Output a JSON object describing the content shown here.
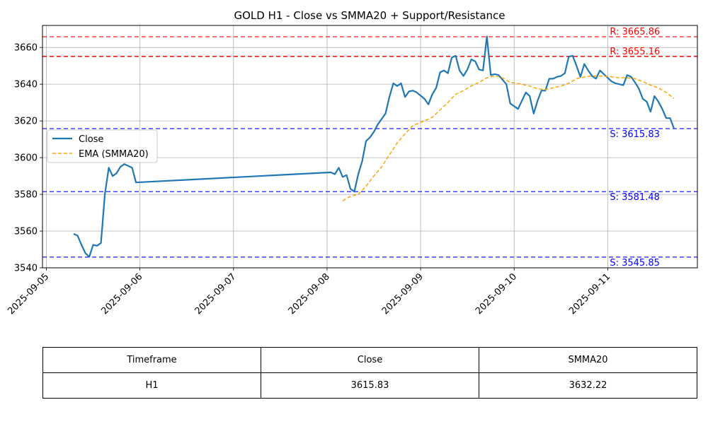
{
  "chart_data": {
    "type": "line",
    "title": "GOLD H1 - Close vs SMMA20 + Support/Resistance",
    "xlabel": "",
    "ylabel": "",
    "xlim": [
      "2025-09-04 23:00",
      "2025-09-11 23:00"
    ],
    "ylim": [
      3540,
      3672
    ],
    "x_ticks": [
      "2025-09-05",
      "2025-09-06",
      "2025-09-07",
      "2025-09-08",
      "2025-09-09",
      "2025-09-10",
      "2025-09-11"
    ],
    "y_ticks": [
      3540,
      3560,
      3580,
      3600,
      3620,
      3640,
      3660
    ],
    "grid": true,
    "legend_position": "center-left",
    "series": [
      {
        "name": "Close",
        "color": "#1f77b4",
        "style": "solid",
        "points": [
          [
            "2025-09-05 07:00",
            3558.5
          ],
          [
            "2025-09-05 08:00",
            3557.5
          ],
          [
            "2025-09-05 09:00",
            3552.5
          ],
          [
            "2025-09-05 10:00",
            3548.0
          ],
          [
            "2025-09-05 11:00",
            3546.0
          ],
          [
            "2025-09-05 12:00",
            3552.5
          ],
          [
            "2025-09-05 13:00",
            3552.0
          ],
          [
            "2025-09-05 14:00",
            3553.5
          ],
          [
            "2025-09-05 15:00",
            3580.0
          ],
          [
            "2025-09-05 16:00",
            3594.5
          ],
          [
            "2025-09-05 17:00",
            3590.0
          ],
          [
            "2025-09-05 18:00",
            3591.5
          ],
          [
            "2025-09-05 19:00",
            3595.0
          ],
          [
            "2025-09-05 20:00",
            3596.5
          ],
          [
            "2025-09-05 21:00",
            3595.5
          ],
          [
            "2025-09-05 22:00",
            3594.5
          ],
          [
            "2025-09-05 23:00",
            3586.5
          ],
          [
            "2025-09-08 01:00",
            3592.0
          ],
          [
            "2025-09-08 02:00",
            3591.0
          ],
          [
            "2025-09-08 03:00",
            3594.5
          ],
          [
            "2025-09-08 04:00",
            3589.5
          ],
          [
            "2025-09-08 05:00",
            3590.5
          ],
          [
            "2025-09-08 06:00",
            3583.0
          ],
          [
            "2025-09-08 07:00",
            3581.5
          ],
          [
            "2025-09-08 08:00",
            3591.0
          ],
          [
            "2025-09-08 09:00",
            3598.0
          ],
          [
            "2025-09-08 10:00",
            3609.0
          ],
          [
            "2025-09-08 11:00",
            3611.0
          ],
          [
            "2025-09-08 12:00",
            3614.0
          ],
          [
            "2025-09-08 13:00",
            3618.0
          ],
          [
            "2025-09-08 14:00",
            3621.0
          ],
          [
            "2025-09-08 15:00",
            3624.0
          ],
          [
            "2025-09-08 16:00",
            3633.0
          ],
          [
            "2025-09-08 17:00",
            3640.5
          ],
          [
            "2025-09-08 18:00",
            3639.0
          ],
          [
            "2025-09-08 19:00",
            3640.5
          ],
          [
            "2025-09-08 20:00",
            3633.0
          ],
          [
            "2025-09-08 21:00",
            3636.0
          ],
          [
            "2025-09-08 22:00",
            3636.5
          ],
          [
            "2025-09-08 23:00",
            3635.5
          ],
          [
            "2025-09-09 01:00",
            3632.0
          ],
          [
            "2025-09-09 02:00",
            3629.0
          ],
          [
            "2025-09-09 03:00",
            3634.5
          ],
          [
            "2025-09-09 04:00",
            3638.0
          ],
          [
            "2025-09-09 05:00",
            3646.5
          ],
          [
            "2025-09-09 06:00",
            3647.5
          ],
          [
            "2025-09-09 07:00",
            3646.0
          ],
          [
            "2025-09-09 08:00",
            3654.5
          ],
          [
            "2025-09-09 09:00",
            3655.5
          ],
          [
            "2025-09-09 10:00",
            3647.5
          ],
          [
            "2025-09-09 11:00",
            3644.5
          ],
          [
            "2025-09-09 12:00",
            3648.0
          ],
          [
            "2025-09-09 13:00",
            3653.5
          ],
          [
            "2025-09-09 14:00",
            3652.5
          ],
          [
            "2025-09-09 15:00",
            3648.0
          ],
          [
            "2025-09-09 16:00",
            3647.5
          ],
          [
            "2025-09-09 17:00",
            3666.0
          ],
          [
            "2025-09-09 18:00",
            3645.0
          ],
          [
            "2025-09-09 19:00",
            3645.5
          ],
          [
            "2025-09-09 20:00",
            3645.0
          ],
          [
            "2025-09-09 21:00",
            3642.5
          ],
          [
            "2025-09-09 22:00",
            3640.0
          ],
          [
            "2025-09-09 23:00",
            3629.5
          ],
          [
            "2025-09-10 01:00",
            3626.5
          ],
          [
            "2025-09-10 02:00",
            3631.0
          ],
          [
            "2025-09-10 03:00",
            3635.5
          ],
          [
            "2025-09-10 04:00",
            3633.5
          ],
          [
            "2025-09-10 05:00",
            3624.0
          ],
          [
            "2025-09-10 06:00",
            3631.0
          ],
          [
            "2025-09-10 07:00",
            3636.5
          ],
          [
            "2025-09-10 08:00",
            3636.5
          ],
          [
            "2025-09-10 09:00",
            3643.0
          ],
          [
            "2025-09-10 10:00",
            3643.0
          ],
          [
            "2025-09-10 11:00",
            3644.0
          ],
          [
            "2025-09-10 12:00",
            3644.5
          ],
          [
            "2025-09-10 13:00",
            3646.0
          ],
          [
            "2025-09-10 14:00",
            3655.0
          ],
          [
            "2025-09-10 15:00",
            3655.5
          ],
          [
            "2025-09-10 16:00",
            3650.0
          ],
          [
            "2025-09-10 17:00",
            3644.0
          ],
          [
            "2025-09-10 18:00",
            3651.0
          ],
          [
            "2025-09-10 19:00",
            3647.5
          ],
          [
            "2025-09-10 20:00",
            3644.5
          ],
          [
            "2025-09-10 21:00",
            3643.0
          ],
          [
            "2025-09-10 22:00",
            3647.5
          ],
          [
            "2025-09-10 23:00",
            3645.5
          ],
          [
            "2025-09-11 01:00",
            3641.5
          ],
          [
            "2025-09-11 02:00",
            3640.5
          ],
          [
            "2025-09-11 03:00",
            3640.0
          ],
          [
            "2025-09-11 04:00",
            3639.5
          ],
          [
            "2025-09-11 05:00",
            3645.0
          ],
          [
            "2025-09-11 06:00",
            3644.0
          ],
          [
            "2025-09-11 07:00",
            3641.0
          ],
          [
            "2025-09-11 08:00",
            3637.5
          ],
          [
            "2025-09-11 09:00",
            3632.0
          ],
          [
            "2025-09-11 10:00",
            3630.5
          ],
          [
            "2025-09-11 11:00",
            3625.0
          ],
          [
            "2025-09-11 12:00",
            3633.5
          ],
          [
            "2025-09-11 13:00",
            3630.5
          ],
          [
            "2025-09-11 14:00",
            3626.5
          ],
          [
            "2025-09-11 15:00",
            3621.5
          ],
          [
            "2025-09-11 16:00",
            3621.5
          ],
          [
            "2025-09-11 17:00",
            3615.83
          ]
        ]
      },
      {
        "name": "EMA (SMMA20)",
        "color": "#ffa500",
        "style": "dashed",
        "points": [
          [
            "2025-09-08 04:00",
            3576.5
          ],
          [
            "2025-09-08 06:00",
            3579.0
          ],
          [
            "2025-09-08 08:00",
            3580.0
          ],
          [
            "2025-09-08 10:00",
            3584.5
          ],
          [
            "2025-09-08 12:00",
            3590.0
          ],
          [
            "2025-09-08 14:00",
            3595.0
          ],
          [
            "2025-09-08 16:00",
            3601.5
          ],
          [
            "2025-09-08 18:00",
            3608.0
          ],
          [
            "2025-09-08 20:00",
            3613.0
          ],
          [
            "2025-09-08 22:00",
            3617.5
          ],
          [
            "2025-09-09 01:00",
            3620.0
          ],
          [
            "2025-09-09 03:00",
            3622.0
          ],
          [
            "2025-09-09 05:00",
            3626.0
          ],
          [
            "2025-09-09 07:00",
            3630.0
          ],
          [
            "2025-09-09 09:00",
            3634.5
          ],
          [
            "2025-09-09 11:00",
            3636.5
          ],
          [
            "2025-09-09 13:00",
            3639.0
          ],
          [
            "2025-09-09 15:00",
            3641.0
          ],
          [
            "2025-09-09 17:00",
            3643.5
          ],
          [
            "2025-09-09 19:00",
            3644.5
          ],
          [
            "2025-09-09 21:00",
            3643.5
          ],
          [
            "2025-09-09 23:00",
            3641.0
          ],
          [
            "2025-09-10 02:00",
            3640.0
          ],
          [
            "2025-09-10 04:00",
            3639.0
          ],
          [
            "2025-09-10 06:00",
            3637.5
          ],
          [
            "2025-09-10 08:00",
            3637.0
          ],
          [
            "2025-09-10 10:00",
            3638.0
          ],
          [
            "2025-09-10 12:00",
            3639.0
          ],
          [
            "2025-09-10 14:00",
            3640.5
          ],
          [
            "2025-09-10 16:00",
            3643.0
          ],
          [
            "2025-09-10 18:00",
            3644.0
          ],
          [
            "2025-09-10 20:00",
            3644.5
          ],
          [
            "2025-09-10 22:00",
            3644.5
          ],
          [
            "2025-09-11 01:00",
            3644.0
          ],
          [
            "2025-09-11 03:00",
            3643.5
          ],
          [
            "2025-09-11 05:00",
            3643.5
          ],
          [
            "2025-09-11 07:00",
            3643.0
          ],
          [
            "2025-09-11 09:00",
            3641.5
          ],
          [
            "2025-09-11 11:00",
            3639.5
          ],
          [
            "2025-09-11 13:00",
            3638.0
          ],
          [
            "2025-09-11 15:00",
            3635.5
          ],
          [
            "2025-09-11 17:00",
            3632.22
          ]
        ]
      }
    ],
    "levels": [
      {
        "kind": "resistance",
        "value": 3665.86,
        "label": "R: 3665.86",
        "color": "#ff0000",
        "opacity": 0.75
      },
      {
        "kind": "resistance",
        "value": 3655.16,
        "label": "R: 3655.16",
        "color": "#ff0000",
        "opacity": 1.0
      },
      {
        "kind": "support",
        "value": 3615.83,
        "label": "S: 3615.83",
        "color": "#0000ff",
        "opacity": 0.75
      },
      {
        "kind": "support",
        "value": 3581.48,
        "label": "S: 3581.48",
        "color": "#0000ff",
        "opacity": 0.75
      },
      {
        "kind": "support",
        "value": 3545.85,
        "label": "S: 3545.85",
        "color": "#0000ff",
        "opacity": 0.75
      }
    ]
  },
  "table": {
    "headers": [
      "Timeframe",
      "Close",
      "SMMA20"
    ],
    "row": [
      "H1",
      "3615.83",
      "3632.22"
    ]
  }
}
